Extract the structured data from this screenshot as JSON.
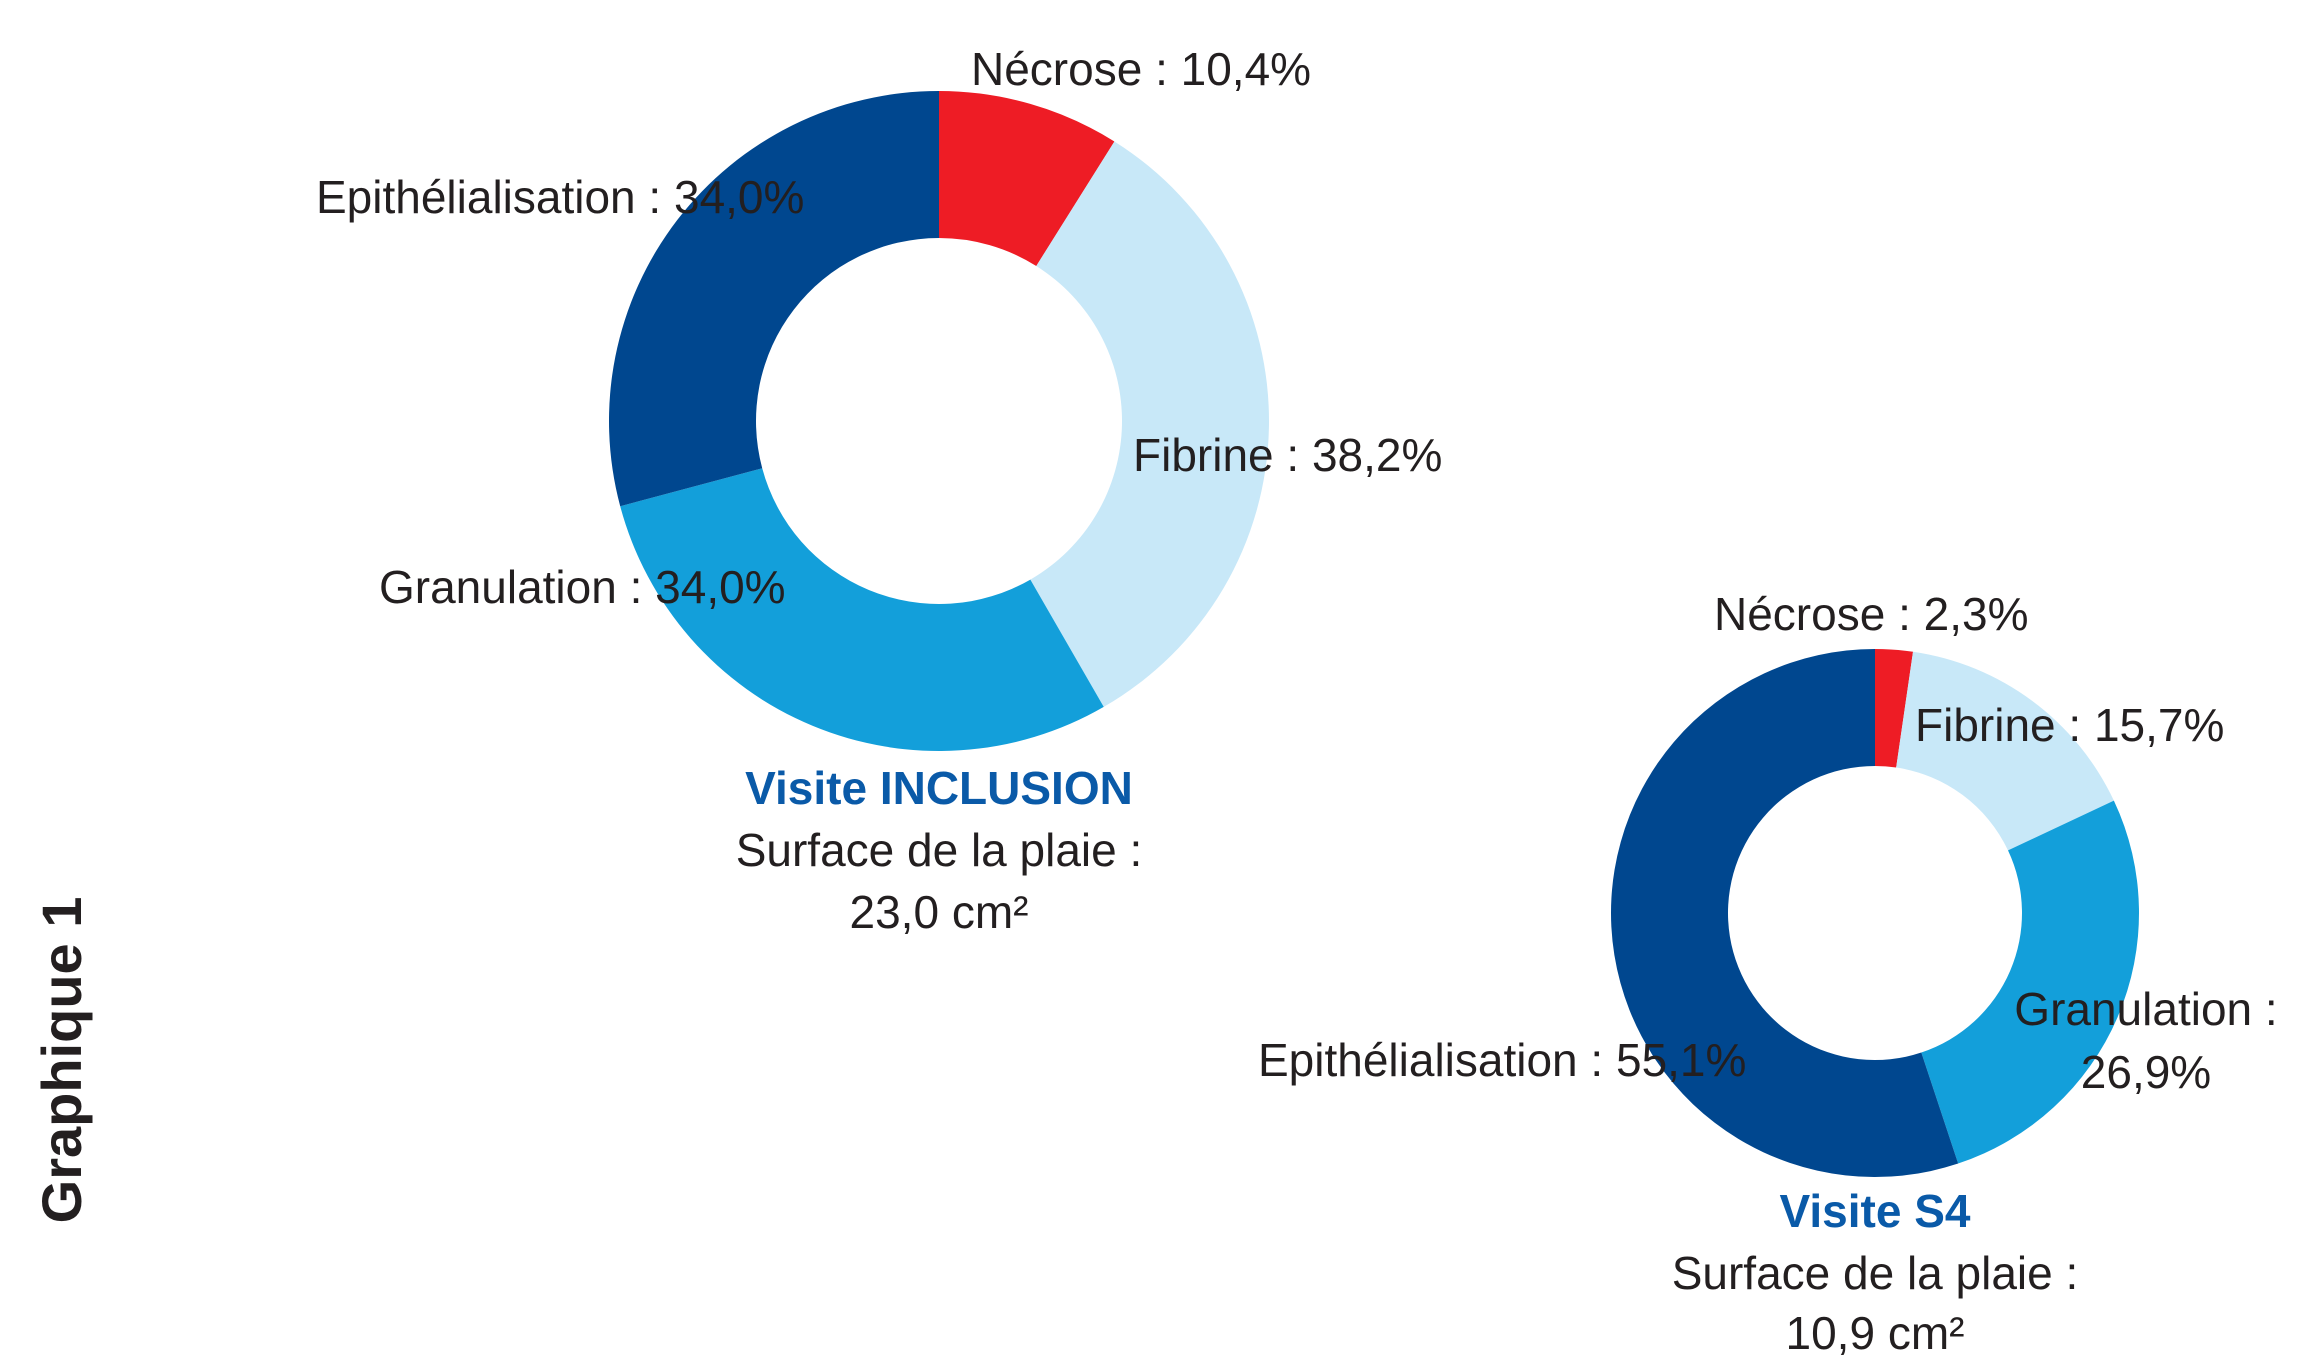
{
  "title": "Graphique 1",
  "chart_data": [
    {
      "type": "donut",
      "title": "Visite INCLUSION",
      "subtitle": [
        "Surface de la plaie :",
        "23,0 cm²"
      ],
      "categories": [
        "Nécrose",
        "Fibrine",
        "Granulation",
        "Epithélialisation"
      ],
      "values": [
        10.4,
        38.2,
        34.0,
        34.0
      ],
      "value_labels": [
        [
          "Nécrose : 10,4%"
        ],
        [
          "Fibrine : 38,2%"
        ],
        [
          "Granulation : 34,0%"
        ],
        [
          "Epithélialisation : 34,0%"
        ]
      ],
      "colors": [
        "#ee1c25",
        "#c8e8f8",
        "#139fda",
        "#00478f"
      ]
    },
    {
      "type": "donut",
      "title": "Visite S4",
      "subtitle": [
        "Surface de la plaie :",
        "10,9 cm²"
      ],
      "categories": [
        "Nécrose",
        "Fibrine",
        "Granulation",
        "Epithélialisation"
      ],
      "values": [
        2.3,
        15.7,
        26.9,
        55.1
      ],
      "value_labels": [
        [
          "Nécrose : 2,3%"
        ],
        [
          "Fibrine : 15,7%"
        ],
        [
          "Granulation :",
          "26,9%"
        ],
        [
          "Epithélialisation : 55,1%"
        ]
      ],
      "colors": [
        "#ee1c25",
        "#c8e8f8",
        "#139fda",
        "#00478f"
      ]
    }
  ]
}
